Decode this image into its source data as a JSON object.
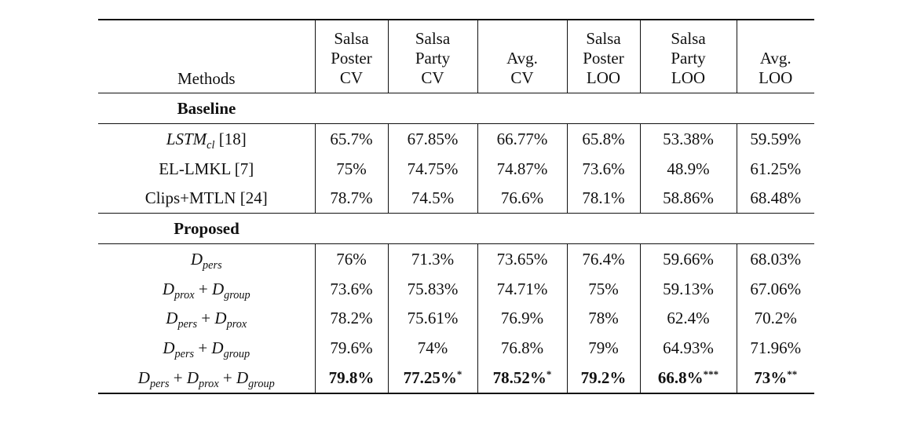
{
  "header": {
    "methods": "Methods",
    "columns": [
      [
        "Salsa",
        "Poster",
        "CV"
      ],
      [
        "Salsa",
        "Party",
        "CV"
      ],
      [
        "Avg.",
        "CV"
      ],
      [
        "Salsa",
        "Poster",
        "LOO"
      ],
      [
        "Salsa",
        "Party",
        "LOO"
      ],
      [
        "Avg.",
        "LOO"
      ]
    ]
  },
  "sections": {
    "baseline": "Baseline",
    "proposed": "Proposed"
  },
  "baseline_rows": [
    {
      "method_a": "LSTM",
      "method_sub": "cl",
      "method_b": " [18]",
      "values": [
        "65.7%",
        "67.85%",
        "66.77%",
        "65.8%",
        "53.38%",
        "59.59%"
      ]
    },
    {
      "method": "EL-LMKL [7]",
      "values": [
        "75%",
        "74.75%",
        "74.87%",
        "73.6%",
        "48.9%",
        "61.25%"
      ]
    },
    {
      "method": "Clips+MTLN [24]",
      "values": [
        "78.7%",
        "74.5%",
        "76.6%",
        "78.1%",
        "58.86%",
        "68.48%"
      ]
    }
  ],
  "proposed_rows": [
    {
      "terms": [
        "pers"
      ],
      "values": [
        "76%",
        "71.3%",
        "73.65%",
        "76.4%",
        "59.66%",
        "68.03%"
      ]
    },
    {
      "terms": [
        "prox",
        "group"
      ],
      "values": [
        "73.6%",
        "75.83%",
        "74.71%",
        "75%",
        "59.13%",
        "67.06%"
      ]
    },
    {
      "terms": [
        "pers",
        "prox"
      ],
      "values": [
        "78.2%",
        "75.61%",
        "76.9%",
        "78%",
        "62.4%",
        "70.2%"
      ]
    },
    {
      "terms": [
        "pers",
        "group"
      ],
      "values": [
        "79.6%",
        "74%",
        "76.8%",
        "79%",
        "64.93%",
        "71.96%"
      ]
    },
    {
      "terms": [
        "pers",
        "prox",
        "group"
      ],
      "values": [
        "79.8%",
        "77.25%",
        "78.52%",
        "79.2%",
        "66.8%",
        "73%"
      ],
      "marks": [
        "",
        "*",
        "*",
        "",
        "***",
        "**"
      ]
    }
  ],
  "symbols": {
    "D": "D",
    "plus": " + "
  }
}
